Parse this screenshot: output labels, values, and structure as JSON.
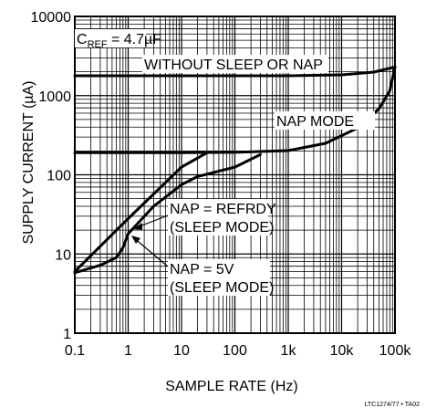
{
  "chart_data": {
    "type": "line",
    "title": "",
    "xlabel": "SAMPLE RATE (Hz)",
    "ylabel": "SUPPLY CURRENT (µA)",
    "x_scale": "log",
    "y_scale": "log",
    "xlim": [
      0.1,
      100000
    ],
    "ylim": [
      1,
      10000
    ],
    "grid": true,
    "x_ticks": [
      "0.1",
      "1",
      "10",
      "100",
      "1k",
      "10k",
      "100k"
    ],
    "y_ticks": [
      "1",
      "10",
      "100",
      "1000",
      "10000"
    ],
    "condition": {
      "main": "C",
      "sub": "REF",
      "rest": " = 4.7µF"
    },
    "series": [
      {
        "name": "WITHOUT SLEEP OR NAP",
        "points": [
          [
            0.1,
            1780
          ],
          [
            100,
            1780
          ],
          [
            1000,
            1780
          ],
          [
            10000,
            1830
          ],
          [
            40000,
            1980
          ],
          [
            100000,
            2300
          ]
        ]
      },
      {
        "name": "NAP MODE",
        "points": [
          [
            0.1,
            190
          ],
          [
            10,
            190
          ],
          [
            100,
            192
          ],
          [
            1000,
            202
          ],
          [
            5000,
            250
          ],
          [
            20000,
            390
          ],
          [
            50000,
            680
          ],
          [
            80000,
            1150
          ],
          [
            100000,
            2300
          ]
        ]
      },
      {
        "name": "NAP = REFRDY (SLEEP MODE)",
        "points": [
          [
            0.1,
            6
          ],
          [
            1,
            28
          ],
          [
            10,
            125
          ],
          [
            30,
            190
          ]
        ]
      },
      {
        "name": "NAP = 5V (SLEEP MODE)",
        "points": [
          [
            0.1,
            5.8
          ],
          [
            0.3,
            7.2
          ],
          [
            0.6,
            9
          ],
          [
            0.8,
            12
          ],
          [
            1,
            18
          ],
          [
            3,
            40
          ],
          [
            10,
            75
          ],
          [
            20,
            95
          ],
          [
            100,
            125
          ],
          [
            300,
            180
          ]
        ]
      }
    ],
    "annotations": [
      "WITHOUT SLEEP OR NAP",
      "NAP MODE",
      "NAP = REFRDY",
      "(SLEEP MODE)",
      "NAP = 5V",
      "(SLEEP MODE)"
    ],
    "figure_code": "LTC1274/77 • TA02"
  }
}
